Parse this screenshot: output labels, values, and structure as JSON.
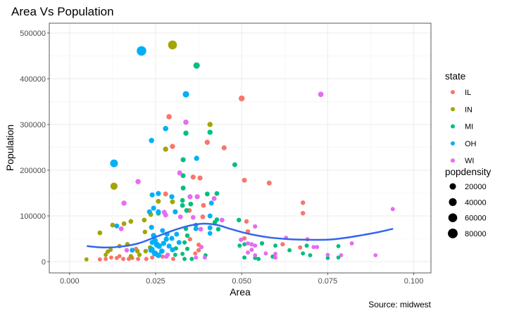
{
  "chart_data": {
    "type": "scatter",
    "title": "Area Vs Population",
    "xlabel": "Area",
    "ylabel": "Population",
    "caption": "Source: midwest",
    "xlim": [
      -0.0059,
      0.105
    ],
    "ylim": [
      -24600,
      521500
    ],
    "x_ticks": [
      "0.000",
      "0.025",
      "0.050",
      "0.075",
      "0.100"
    ],
    "x_tick_values": [
      0,
      0.025,
      0.05,
      0.075,
      0.1
    ],
    "y_ticks": [
      "0",
      "100000",
      "200000",
      "300000",
      "400000",
      "500000"
    ],
    "y_tick_values": [
      0,
      100000,
      200000,
      300000,
      400000,
      500000
    ],
    "grid": true,
    "legend_placement": "right",
    "color_legend": {
      "title": "state",
      "entries": [
        {
          "name": "IL",
          "color": "#F8766D"
        },
        {
          "name": "IN",
          "color": "#A3A500"
        },
        {
          "name": "MI",
          "color": "#00BF7D"
        },
        {
          "name": "OH",
          "color": "#00B0F6"
        },
        {
          "name": "WI",
          "color": "#E76BF3"
        }
      ]
    },
    "size_legend": {
      "title": "popdensity",
      "entries": [
        "20000",
        "40000",
        "60000",
        "80000"
      ],
      "values": [
        20000,
        40000,
        60000,
        80000
      ]
    },
    "smooth_line": {
      "color": "#3366EE",
      "points": [
        [
          0.005,
          34000
        ],
        [
          0.01,
          31000
        ],
        [
          0.015,
          33000
        ],
        [
          0.02,
          40000
        ],
        [
          0.025,
          54000
        ],
        [
          0.03,
          68000
        ],
        [
          0.035,
          79000
        ],
        [
          0.039,
          83000
        ],
        [
          0.043,
          80000
        ],
        [
          0.047,
          71000
        ],
        [
          0.052,
          61000
        ],
        [
          0.058,
          53000
        ],
        [
          0.064,
          49000
        ],
        [
          0.068,
          48000
        ],
        [
          0.075,
          48000
        ],
        [
          0.08,
          52000
        ],
        [
          0.085,
          58000
        ],
        [
          0.09,
          65000
        ],
        [
          0.094,
          72000
        ]
      ]
    },
    "series": [
      {
        "name": "IL",
        "points": [
          [
            0.05,
            357000,
            15000
          ],
          [
            0.0289,
            317000,
            9000
          ],
          [
            0.04,
            261000,
            8000
          ],
          [
            0.0299,
            252000,
            8000
          ],
          [
            0.0449,
            249000,
            7000
          ],
          [
            0.0359,
            185000,
            7000
          ],
          [
            0.0379,
            183000,
            7000
          ],
          [
            0.0508,
            178000,
            6000
          ],
          [
            0.058,
            172000,
            6000
          ],
          [
            0.0678,
            129000,
            4000
          ],
          [
            0.0678,
            106000,
            4000
          ],
          [
            0.0279,
            148000,
            6000
          ],
          [
            0.0389,
            123000,
            5000
          ],
          [
            0.0348,
            112000,
            5000
          ],
          [
            0.0387,
            98000,
            5000
          ],
          [
            0.0514,
            88000,
            4000
          ],
          [
            0.0518,
            66000,
            4000
          ],
          [
            0.0508,
            51000,
            3000
          ],
          [
            0.035,
            49000,
            3000
          ],
          [
            0.0619,
            38000,
            3000
          ],
          [
            0.067,
            31000,
            3000
          ],
          [
            0.0088,
            5000,
            2000
          ],
          [
            0.0105,
            6000,
            2000
          ],
          [
            0.0121,
            9000,
            2000
          ],
          [
            0.0137,
            8000,
            2000
          ],
          [
            0.0156,
            6000,
            2000
          ],
          [
            0.0172,
            6000,
            2000
          ],
          [
            0.0182,
            8000,
            2000
          ],
          [
            0.0199,
            6000,
            2000
          ],
          [
            0.0223,
            6000,
            2000
          ],
          [
            0.024,
            9000,
            2000
          ],
          [
            0.027,
            11000,
            2000
          ],
          [
            0.0301,
            6000,
            2000
          ],
          [
            0.0145,
            12000,
            2000
          ],
          [
            0.0193,
            28000,
            3000
          ],
          [
            0.0365,
            18000,
            2000
          ],
          [
            0.0375,
            25000,
            3000
          ],
          [
            0.0375,
            37000,
            3000
          ]
        ]
      },
      {
        "name": "IN",
        "points": [
          [
            0.0299,
            474000,
            60000
          ],
          [
            0.0408,
            300000,
            8000
          ],
          [
            0.0279,
            246000,
            8000
          ],
          [
            0.0129,
            165000,
            30000
          ],
          [
            0.0258,
            132000,
            6000
          ],
          [
            0.0299,
            131000,
            6000
          ],
          [
            0.0236,
            103000,
            5000
          ],
          [
            0.0217,
            91000,
            5000
          ],
          [
            0.0125,
            80000,
            5000
          ],
          [
            0.0158,
            83000,
            5000
          ],
          [
            0.0178,
            88000,
            5000
          ],
          [
            0.0219,
            65000,
            4000
          ],
          [
            0.0088,
            63000,
            5000
          ],
          [
            0.0049,
            5000,
            2000
          ],
          [
            0.0105,
            15000,
            2000
          ],
          [
            0.0111,
            22000,
            3000
          ],
          [
            0.0119,
            26000,
            3000
          ],
          [
            0.0178,
            12000,
            3000
          ],
          [
            0.0197,
            23000,
            4000
          ],
          [
            0.0203,
            15000,
            3000
          ],
          [
            0.0221,
            23000,
            4000
          ],
          [
            0.0234,
            31000,
            4000
          ],
          [
            0.0168,
            38000,
            4000
          ],
          [
            0.0145,
            34000,
            3000
          ]
        ]
      },
      {
        "name": "MI",
        "points": [
          [
            0.0369,
            429000,
            20000
          ],
          [
            0.0408,
            283000,
            8000
          ],
          [
            0.0338,
            281000,
            8000
          ],
          [
            0.033,
            223000,
            7000
          ],
          [
            0.048,
            212000,
            6000
          ],
          [
            0.033,
            188000,
            6000
          ],
          [
            0.033,
            161000,
            6000
          ],
          [
            0.0328,
            134000,
            5000
          ],
          [
            0.04,
            148000,
            5000
          ],
          [
            0.0428,
            149000,
            5000
          ],
          [
            0.0328,
            123000,
            5000
          ],
          [
            0.0352,
            126000,
            5000
          ],
          [
            0.034,
            112000,
            5000
          ],
          [
            0.0258,
            106000,
            5000
          ],
          [
            0.0428,
            92000,
            4000
          ],
          [
            0.0492,
            91000,
            4000
          ],
          [
            0.0338,
            72000,
            4000
          ],
          [
            0.0367,
            80000,
            4000
          ],
          [
            0.0432,
            71000,
            4000
          ],
          [
            0.0422,
            86000,
            4000
          ],
          [
            0.0342,
            57000,
            4000
          ],
          [
            0.0334,
            42000,
            3000
          ],
          [
            0.0494,
            35000,
            2000
          ],
          [
            0.0508,
            38000,
            2000
          ],
          [
            0.0559,
            40000,
            3000
          ],
          [
            0.0689,
            35000,
            2000
          ],
          [
            0.0781,
            34000,
            2000
          ],
          [
            0.0598,
            35000,
            2000
          ],
          [
            0.0639,
            25000,
            2000
          ],
          [
            0.0678,
            18000,
            2000
          ],
          [
            0.0699,
            14000,
            2000
          ],
          [
            0.059,
            11000,
            2000
          ],
          [
            0.0508,
            9000,
            2000
          ],
          [
            0.0539,
            8000,
            2000
          ],
          [
            0.0549,
            6000,
            2000
          ],
          [
            0.075,
            8000,
            1500
          ],
          [
            0.0781,
            9000,
            1500
          ],
          [
            0.0307,
            15000,
            2000
          ],
          [
            0.0328,
            17000,
            2000
          ],
          [
            0.0334,
            6000,
            2000
          ],
          [
            0.0355,
            6000,
            2000
          ],
          [
            0.0395,
            14000,
            2000
          ],
          [
            0.0342,
            28000,
            3000
          ],
          [
            0.0309,
            29000,
            3000
          ]
        ]
      },
      {
        "name": "OH",
        "points": [
          [
            0.0209,
            461000,
            75000
          ],
          [
            0.0338,
            366000,
            20000
          ],
          [
            0.0279,
            291000,
            9000
          ],
          [
            0.0238,
            265000,
            9000
          ],
          [
            0.0369,
            226000,
            8000
          ],
          [
            0.0129,
            215000,
            40000
          ],
          [
            0.024,
            146000,
            7000
          ],
          [
            0.0258,
            149000,
            7000
          ],
          [
            0.0297,
            142000,
            7000
          ],
          [
            0.0412,
            128000,
            6000
          ],
          [
            0.0244,
            117000,
            7000
          ],
          [
            0.0232,
            109000,
            7000
          ],
          [
            0.0258,
            109000,
            7000
          ],
          [
            0.0307,
            109000,
            7000
          ],
          [
            0.0408,
            100000,
            6000
          ],
          [
            0.0137,
            78000,
            6000
          ],
          [
            0.0238,
            75000,
            7000
          ],
          [
            0.0367,
            72000,
            6000
          ],
          [
            0.0408,
            74000,
            6000
          ],
          [
            0.0408,
            62000,
            5000
          ],
          [
            0.027,
            68000,
            6000
          ],
          [
            0.024,
            42000,
            7000
          ],
          [
            0.0318,
            42000,
            6000
          ],
          [
            0.0244,
            57000,
            9000
          ],
          [
            0.0248,
            46000,
            12000
          ],
          [
            0.0254,
            37000,
            15000
          ],
          [
            0.026,
            34000,
            12000
          ],
          [
            0.0238,
            26000,
            20000
          ],
          [
            0.0248,
            18000,
            15000
          ],
          [
            0.0258,
            14000,
            12000
          ],
          [
            0.0268,
            23000,
            10000
          ],
          [
            0.0273,
            40000,
            8000
          ],
          [
            0.0281,
            49000,
            8000
          ],
          [
            0.0289,
            34000,
            7000
          ],
          [
            0.0299,
            26000,
            7000
          ],
          [
            0.0297,
            51000,
            7000
          ],
          [
            0.0283,
            60000,
            7000
          ],
          [
            0.0311,
            60000,
            6000
          ],
          [
            0.0182,
            25000,
            6000
          ]
        ]
      },
      {
        "name": "WI",
        "points": [
          [
            0.073,
            366000,
            10000
          ],
          [
            0.0338,
            305000,
            9000
          ],
          [
            0.032,
            194000,
            7000
          ],
          [
            0.0199,
            175000,
            9000
          ],
          [
            0.035,
            142000,
            7000
          ],
          [
            0.0371,
            142000,
            7000
          ],
          [
            0.042,
            138000,
            6000
          ],
          [
            0.0158,
            128000,
            8000
          ],
          [
            0.0275,
            108000,
            6000
          ],
          [
            0.0279,
            102000,
            6000
          ],
          [
            0.0359,
            97000,
            5000
          ],
          [
            0.0322,
            98000,
            5000
          ],
          [
            0.0443,
            91000,
            5000
          ],
          [
            0.015,
            72000,
            6000
          ],
          [
            0.0381,
            71000,
            5000
          ],
          [
            0.0939,
            115000,
            2000
          ],
          [
            0.0539,
            77000,
            3000
          ],
          [
            0.0498,
            48000,
            3000
          ],
          [
            0.0518,
            40000,
            2500
          ],
          [
            0.0529,
            38000,
            2500
          ],
          [
            0.0539,
            35000,
            2500
          ],
          [
            0.0629,
            52000,
            2500
          ],
          [
            0.0691,
            49000,
            2500
          ],
          [
            0.0709,
            32000,
            2000
          ],
          [
            0.0719,
            32000,
            2000
          ],
          [
            0.082,
            40000,
            2000
          ],
          [
            0.0529,
            26000,
            2000
          ],
          [
            0.0518,
            20000,
            2000
          ],
          [
            0.057,
            18000,
            2000
          ],
          [
            0.0598,
            17000,
            2000
          ],
          [
            0.0598,
            9000,
            2000
          ],
          [
            0.0539,
            14000,
            2000
          ],
          [
            0.075,
            15000,
            1500
          ],
          [
            0.0789,
            14000,
            1500
          ],
          [
            0.0889,
            14000,
            1500
          ],
          [
            0.0166,
            25000,
            4000
          ],
          [
            0.0281,
            11000,
            3000
          ],
          [
            0.0285,
            15000,
            3000
          ],
          [
            0.0383,
            32000,
            3000
          ],
          [
            0.0367,
            9000,
            2000
          ],
          [
            0.0393,
            9000,
            2000
          ]
        ]
      }
    ]
  }
}
